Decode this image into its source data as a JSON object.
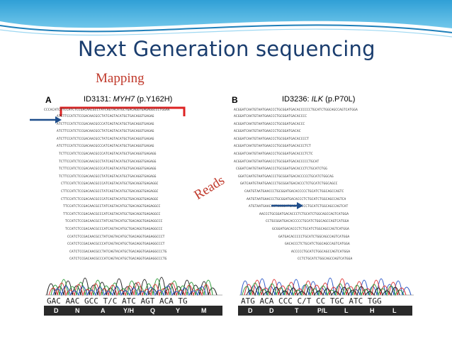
{
  "slide": {
    "title": "Next Generation sequencing",
    "mapping_label": "Mapping",
    "reads_label": "Reads"
  },
  "panel_a": {
    "letter": "A",
    "id": "ID3131: ",
    "gene": "MYH7",
    "variant": " (p.Y162H)",
    "reference": "CCCACATCTTCCATCTCCGACAACGCCTATCAGTACATGCTGACAGGTGAGAGGCCCTGGAA",
    "reads": [
      "ATCTTCCATCTCCGACAACGCCTATCAGTACATGCTGACAGGTGAGAG",
      "ATCTTCCATCTCCGACAACGCCCATCAGTACATGCTGACAGGTGAGAG",
      "ATCTTCCATCTCCGACAACGCCTATCAGTACATGCTGACAGGTGAGAG",
      "ATCTTCCATCTCCGACAACGCCTATCAGTACATGCTGACAGGTGAGAG",
      "ATCTTCCATCTCCGACAACGCCCATCAGTACATGCTGACAGGTGAGAG",
      "TCTTCCATCTCCGACAACGCCCATCAGTACATGCTGACAGGTGAGAGG",
      "TCTTCCATCTCCGACAACGCCTATCAGTACATGCTGACAGGTGAGAGG",
      "TCTTCCATCTCCGACAACGCCCATCAGTACATGCTGACAGGTGAGAGG",
      "TCTTCCATCTCCGACAACGCCTATCAGTACATGCTGACAGGTGAGAGG",
      "CTTCCATCTCCGACAACGCCCATCAGTACATGCTGACAGGTGAGAGGC",
      "CTTCCATCTCCGACAACGCCTATCAGTACATGCTGACAGGTGAGAGGC",
      "CTTCCATCTCCGACAACGCCCATCAGTACATGCTGACAGGTGAGAGGC",
      "TTCCATCTCCGACAACGCCTATCAGTACATGCTGACAGGTGAGAGGCC",
      "TTCCATCTCCGACAACGCCCATCAGTACATGCTGACAGGTGAGAGGCC",
      "TCCATCTCCGACAACGCCTATCAGTACATGCTGACAGGTGAGAGGCCC",
      "TCCATCTCCGACAACGCCCATCAGTACATGCTGACAGGTGAGAGGCCC",
      "CCATCTCCGACAACGCCTATCAGTACATGCTGACAGGTGAGAGGCCCT",
      "CCATCTCCGACAACGCCCATCAGTACATGCTGACAGGTGAGAGGCCCT",
      "CATCTCCGACAACGCCTATCAGTACATGCTGACAGGTGAGAGGCCCTG",
      "CATCTCCGACAACGCCCATCAGTACATGCTGACAGGTGAGAGGCCCTG"
    ],
    "trace_sequence": "GAC AAC GCC T/C ATC AGT ACA TG",
    "amino_acids": [
      "D",
      "N",
      "A",
      "Y/H",
      "Q",
      "Y",
      "M"
    ]
  },
  "panel_b": {
    "letter": "B",
    "id": "ID3236: ",
    "gene": "ILK",
    "variant": " (p.P70L)",
    "reference": "ACGGATCAATGTAATGAACCCTGCGGATGACACCCCCCTGCATCTGGCAGCCAGTCATGGA",
    "reads": [
      "ACGGATCAATGTAATGAACCCTGCGGATGACACCCC",
      "ACGGATCAATGTAATGAACCCTGCGGATGACACCC",
      "ACGGATCAATGTAATGAACCCTGCGGATGACAC",
      "ACGGATCAATGTAATGAACCCTGCGGATGACACCCCT",
      "ACGGATCAATGTAATGAACCCTGCGGATGACACCCTCT",
      "ACGGATCAATGTAATGAACCCTGCGGATGACACCCTCTC",
      "ACGGATCAATGTAATGAACCCTGCGGATGACACCCCCTGCAT",
      "CGGATCAATGTAATGAACCCTGCGGATGACACCCTCTGCATCTGG",
      "GGATCAATGTAATGAACCCTGCGGATGACACCCCCTGCATCTGGCAG",
      "GATCAATGTAATGAACCCTGCGGATGACACCCTCTGCATCTGGCAGCC",
      "CAATGTAATGAACCCTGCGGATGACACCCCCTGCATCTGGCAGCCAGTC",
      "AATGTAATGAACCCTGCGGATGACACCCTCTGCATCTGGCAGCCAGTCA",
      "ATGTAATGAACCCTGCGGATGACACCCCCTGCATCTGGCAGCCAGTCAT",
      "AACCCTGCGGATGACACCCTCTGCATCTGGCAGCCAGTCATGGA",
      "CCTGCGGATGACACCCCCTGCATCTGGCAGCCAGTCATGGA",
      "GCGGATGACACCCTCTGCATCTGGCAGCCAGTCATGGA",
      "GATGACACCCCCTGCATCTGGCAGCCAGTCATGGA",
      "GACACCCTCTGCATCTGGCAGCCAGTCATGGA",
      "ACCCCCTGCATCTGGCAGCCAGTCATGGA",
      "CCTCTGCATCTGGCAGCCAGTCATGGA"
    ],
    "trace_sequence": "ATG ACA CCC C/T CC TGC ATC TGG",
    "amino_acids": [
      "D",
      "D",
      "T",
      "P/L",
      "L",
      "H",
      "L"
    ]
  },
  "colors": {
    "title": "#1a3d6e",
    "accent_red": "#c0392b",
    "arrow_blue": "#1f4e8c"
  }
}
